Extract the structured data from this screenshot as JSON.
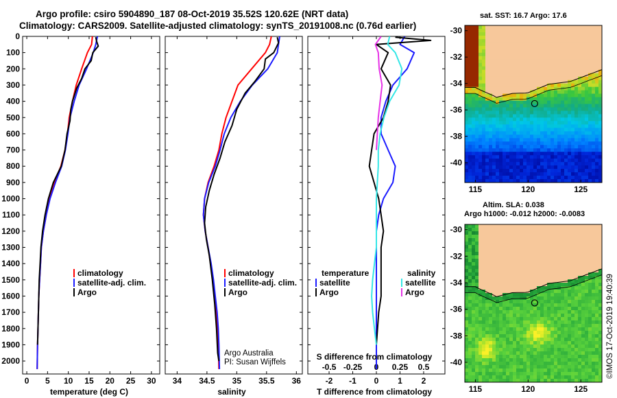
{
  "figure": {
    "title_line1": "Argo profile: csiro 5904890_187 08-Oct-2019 35.52S 120.62E (NRT data)",
    "title_line2": "Climatology: CARS2009. Satellite-adjusted climatology: synTS_20191008.nc (0.76d earlier)",
    "credit_line1": "Argo Australia",
    "credit_line2": "PI: Susan Wijffels",
    "stamp": "©IMOS 17-Oct-2019 19:40:39"
  },
  "colors": {
    "climatology": "#ff0000",
    "satellite_adj": "#1a1aff",
    "argo": "#000000",
    "satellite_t": "#1a1aff",
    "satellite_s": "#33e6e6",
    "argo_s": "#e633e6",
    "land": "#f7c89b"
  },
  "chart_data": [
    {
      "type": "line",
      "xlabel": "temperature (deg C)",
      "ylabel": "",
      "xlim": [
        -1,
        32
      ],
      "ylim": [
        2080,
        0
      ],
      "xticks": [
        "0",
        "5",
        "10",
        "15",
        "20",
        "25",
        "30"
      ],
      "yticks": [
        "0",
        "100",
        "200",
        "300",
        "400",
        "500",
        "600",
        "700",
        "800",
        "900",
        "1000",
        "1100",
        "1200",
        "1300",
        "1400",
        "1500",
        "1600",
        "1700",
        "1800",
        "1900",
        "2000"
      ],
      "legend": [
        "climatology",
        "satellite-adj. clim.",
        "Argo"
      ],
      "series": [
        {
          "name": "climatology",
          "x": [
            15.8,
            15.6,
            14.6,
            13.2,
            11.9,
            11.0,
            10.2,
            9.8,
            9.2,
            8.2,
            6.6,
            5.5,
            4.7,
            4.0,
            3.5,
            3.3,
            3.1,
            2.9,
            2.8,
            2.7,
            2.6,
            2.5
          ],
          "y": [
            0,
            50,
            100,
            200,
            300,
            400,
            500,
            600,
            700,
            800,
            900,
            1000,
            1100,
            1200,
            1300,
            1400,
            1500,
            1600,
            1700,
            1800,
            1900,
            2050
          ]
        },
        {
          "name": "satellite-adj. clim.",
          "x": [
            17.0,
            16.6,
            16.0,
            14.4,
            12.6,
            11.4,
            10.4,
            9.9,
            9.3,
            8.4,
            6.9,
            5.6,
            4.7,
            4.0,
            3.5,
            3.3,
            3.1,
            2.9,
            2.8,
            2.7,
            2.6,
            2.5
          ],
          "y": [
            0,
            50,
            100,
            200,
            300,
            400,
            500,
            600,
            700,
            800,
            900,
            1000,
            1100,
            1200,
            1300,
            1400,
            1500,
            1600,
            1700,
            1800,
            1900,
            2050
          ]
        },
        {
          "name": "Argo",
          "x": [
            16.6,
            16.8,
            17.2,
            15.9,
            15.5,
            14.0,
            13.2,
            12.0,
            11.0,
            10.6,
            10.4,
            9.7,
            9.2,
            8.3,
            6.4,
            5.2,
            4.4,
            3.8,
            3.4,
            3.2,
            3.0,
            2.9,
            2.8,
            2.7,
            2.6
          ],
          "y": [
            5,
            30,
            60,
            100,
            150,
            200,
            260,
            320,
            400,
            450,
            520,
            600,
            700,
            800,
            900,
            1000,
            1100,
            1200,
            1300,
            1400,
            1500,
            1600,
            1700,
            1800,
            1900
          ]
        }
      ]
    },
    {
      "type": "line",
      "xlabel": "salinity",
      "ylabel": "",
      "xlim": [
        33.8,
        36.1
      ],
      "ylim": [
        2080,
        0
      ],
      "xticks": [
        "34",
        "34.5",
        "35",
        "35.5",
        "36"
      ],
      "legend": [
        "climatology",
        "satellite-adj. clim.",
        "Argo"
      ],
      "series": [
        {
          "name": "climatology",
          "x": [
            35.58,
            35.55,
            35.48,
            35.25,
            35.02,
            34.92,
            34.82,
            34.75,
            34.7,
            34.62,
            34.52,
            34.46,
            34.44,
            34.47,
            34.52,
            34.56,
            34.6,
            34.63,
            34.66,
            34.68,
            34.69,
            34.7
          ],
          "y": [
            0,
            50,
            100,
            200,
            300,
            400,
            500,
            600,
            700,
            800,
            900,
            1000,
            1100,
            1200,
            1300,
            1400,
            1500,
            1600,
            1700,
            1800,
            1900,
            2050
          ]
        },
        {
          "name": "satellite-adj. clim.",
          "x": [
            35.72,
            35.7,
            35.68,
            35.52,
            35.26,
            35.06,
            34.9,
            34.79,
            34.72,
            34.64,
            34.53,
            34.46,
            34.44,
            34.47,
            34.52,
            34.57,
            34.61,
            34.64,
            34.67,
            34.69,
            34.7,
            34.71
          ],
          "y": [
            0,
            50,
            100,
            200,
            300,
            400,
            500,
            600,
            700,
            800,
            900,
            1000,
            1100,
            1200,
            1300,
            1400,
            1500,
            1600,
            1700,
            1800,
            1900,
            2050
          ]
        },
        {
          "name": "Argo",
          "x": [
            35.68,
            35.7,
            35.62,
            35.48,
            35.46,
            35.3,
            35.14,
            35.0,
            34.92,
            34.8,
            34.72,
            34.62,
            34.54,
            34.48,
            34.46,
            34.49,
            34.54,
            34.59,
            34.63,
            34.66,
            34.68,
            34.7
          ],
          "y": [
            5,
            40,
            100,
            140,
            200,
            280,
            350,
            450,
            550,
            650,
            750,
            850,
            950,
            1050,
            1150,
            1250,
            1350,
            1500,
            1650,
            1800,
            1950,
            2000
          ]
        }
      ]
    },
    {
      "type": "line",
      "xlabel": "T difference from climatology",
      "xlabel2": "S difference from climatology",
      "xlim": [
        -2.9,
        2.9
      ],
      "ylim": [
        2080,
        0
      ],
      "xticks": [
        "-2",
        "-1",
        "0",
        "1",
        "2"
      ],
      "xticks_s": [
        "-0.5",
        "-0.25",
        "0",
        "0.25",
        "0.5"
      ],
      "legend_temperature": {
        "heading": "temperature",
        "items": [
          "satellite",
          "Argo"
        ]
      },
      "legend_salinity": {
        "heading": "salinity",
        "items": [
          "satellite",
          "Argo"
        ]
      },
      "series": [
        {
          "name": "satellite",
          "group": "temperature",
          "x": [
            1.2,
            1.0,
            1.6,
            1.3,
            0.7,
            0.4,
            0.2,
            0.2,
            0.5,
            0.8,
            0.7,
            0.3,
            0.1,
            0.0,
            0.0,
            0.0,
            0.0,
            0.0,
            0.0,
            0.0,
            0.0,
            0.0
          ],
          "y": [
            0,
            50,
            100,
            200,
            300,
            400,
            500,
            600,
            700,
            800,
            900,
            1000,
            1100,
            1200,
            1300,
            1400,
            1500,
            1600,
            1700,
            1800,
            1900,
            2050
          ]
        },
        {
          "name": "Argo",
          "group": "temperature",
          "x": [
            0.8,
            2.3,
            0.0,
            0.5,
            0.2,
            0.6,
            0.5,
            0.3,
            -0.1,
            -0.2,
            -0.3,
            -0.1,
            0.1,
            0.2,
            0.3,
            0.2,
            0.2,
            0.2,
            0.2,
            0.1,
            0.0
          ],
          "y": [
            5,
            25,
            50,
            100,
            200,
            300,
            400,
            500,
            600,
            700,
            800,
            900,
            1000,
            1100,
            1200,
            1300,
            1400,
            1500,
            1600,
            1700,
            1900
          ]
        },
        {
          "name": "satellite",
          "group": "salinity",
          "x": [
            0.14,
            0.12,
            0.2,
            0.27,
            0.24,
            0.14,
            0.08,
            0.04,
            0.02,
            0.02,
            0.01,
            0.0,
            0.0,
            0.0,
            0.0,
            -0.02,
            -0.04,
            -0.05,
            -0.04,
            -0.02,
            0.0
          ],
          "y": [
            0,
            50,
            100,
            200,
            300,
            400,
            500,
            600,
            700,
            800,
            900,
            1000,
            1100,
            1200,
            1300,
            1400,
            1500,
            1600,
            1700,
            1800,
            1900
          ]
        },
        {
          "name": "Argo",
          "group": "salinity",
          "x": [
            0.05,
            -0.01,
            0.02,
            0.03,
            0.06,
            0.04,
            0.02,
            0.01,
            0.0
          ],
          "y": [
            0,
            50,
            100,
            200,
            300,
            400,
            500,
            600,
            700
          ]
        }
      ]
    },
    {
      "type": "heatmap",
      "title": "sat. SST: 16.7  Argo: 17.6",
      "xticks": [
        "115",
        "120",
        "125"
      ],
      "yticks": [
        "-30",
        "-32",
        "-34",
        "-36",
        "-38",
        "-40"
      ],
      "xlim": [
        114,
        127
      ],
      "ylim": [
        -41.5,
        -29.6
      ],
      "marker": {
        "lon": 120.62,
        "lat": -35.52
      }
    },
    {
      "type": "heatmap",
      "title": "Altim. SLA: 0.038",
      "subtitle": "Argo h1000: -0.012 h2000: -0.0083",
      "xticks": [
        "115",
        "120",
        "125"
      ],
      "yticks": [
        "-30",
        "-32",
        "-34",
        "-36",
        "-38",
        "-40"
      ],
      "xlim": [
        114,
        127
      ],
      "ylim": [
        -41.5,
        -29.6
      ],
      "marker": {
        "lon": 120.62,
        "lat": -35.52
      }
    }
  ]
}
